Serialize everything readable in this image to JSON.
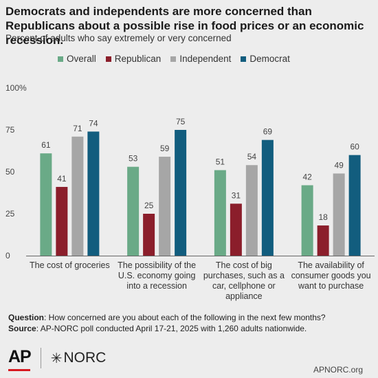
{
  "title": "Democrats and independents are more concerned than Republicans about a possible rise in food prices or an economic recession.",
  "subtitle": "Percent of adults who say extremely or very concerned",
  "legend": [
    {
      "label": "Overall",
      "color": "#6aaa87"
    },
    {
      "label": "Republican",
      "color": "#8b1e2b"
    },
    {
      "label": "Independent",
      "color": "#a6a6a6"
    },
    {
      "label": "Democrat",
      "color": "#125d7e"
    }
  ],
  "chart_data": {
    "type": "bar",
    "categories": [
      [
        "The cost of groceries"
      ],
      [
        "The possibility of the",
        "U.S. economy going",
        "into a recession"
      ],
      [
        "The cost of big",
        "purchases, such as a",
        "car, cellphone or",
        "appliance"
      ],
      [
        "The availability of",
        "consumer goods you",
        "want to purchase"
      ]
    ],
    "series": [
      {
        "name": "Overall",
        "values": [
          61,
          53,
          51,
          42
        ]
      },
      {
        "name": "Republican",
        "values": [
          41,
          25,
          31,
          18
        ]
      },
      {
        "name": "Independent",
        "values": [
          71,
          59,
          54,
          49
        ]
      },
      {
        "name": "Democrat",
        "values": [
          74,
          75,
          69,
          60
        ]
      }
    ],
    "yticks": [
      "0",
      "25",
      "50",
      "75",
      "100%"
    ],
    "ylim": [
      0,
      100
    ],
    "grid": false
  },
  "footer": {
    "question_label": "Question",
    "question_text": ": How concerned are you about each of the following in the next few months?",
    "source_label": "Source",
    "source_text": ": AP-NORC poll conducted April 17-21, 2025 with 1,260 adults nationwide."
  },
  "logos": {
    "ap": "AP",
    "norc": "NORC"
  },
  "url": "APNORC.org"
}
